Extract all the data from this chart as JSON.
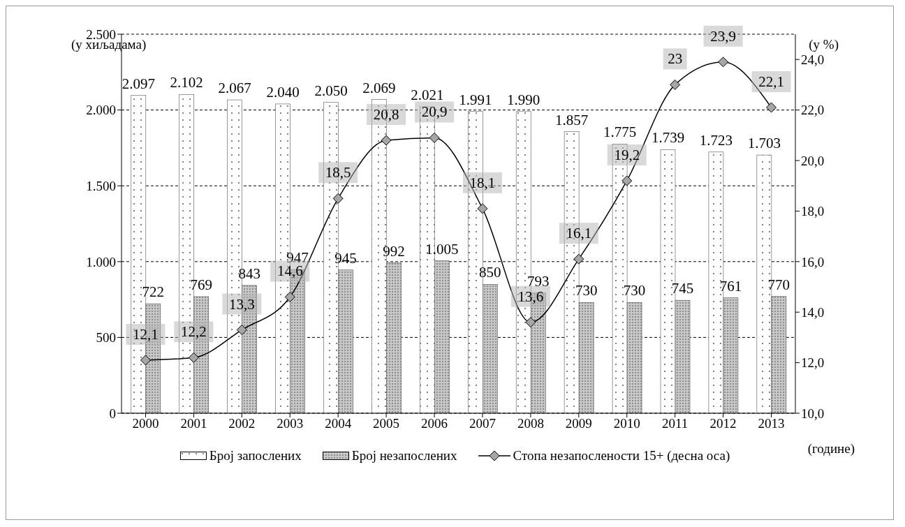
{
  "chart_data": {
    "type": "bar",
    "categories": [
      "2000",
      "2001",
      "2002",
      "2003",
      "2004",
      "2005",
      "2006",
      "2007",
      "2008",
      "2009",
      "2010",
      "2011",
      "2012",
      "2013"
    ],
    "series": [
      {
        "name": "Број запослених",
        "color": "#ffffff",
        "values": [
          2097,
          2102,
          2067,
          2040,
          2050,
          2069,
          2021,
          1991,
          1990,
          1857,
          1775,
          1739,
          1723,
          1703
        ],
        "value_labels": [
          "2.097",
          "2.102",
          "2.067",
          "2.040",
          "2.050",
          "2.069",
          "2.021",
          "1.991",
          "1.990",
          "1.857",
          "1.775",
          "1.739",
          "1.723",
          "1.703"
        ]
      },
      {
        "name": "Број незапослених",
        "color": "#c8c8c8",
        "values": [
          722,
          769,
          843,
          947,
          945,
          992,
          1005,
          850,
          793,
          730,
          730,
          745,
          761,
          770
        ],
        "value_labels": [
          "722",
          "769",
          "843",
          "947",
          "945",
          "992",
          "1.005",
          "850",
          "793",
          "730",
          "730",
          "745",
          "761",
          "770"
        ]
      },
      {
        "name": "Стопа незапослености 15+ (десна оса)",
        "type": "line",
        "axis": "y2",
        "color": "#000000",
        "values": [
          12.1,
          12.2,
          13.3,
          14.6,
          18.5,
          20.8,
          20.9,
          18.1,
          13.6,
          16.1,
          19.2,
          23,
          23.9,
          22.1
        ],
        "value_labels": [
          "12,1",
          "12,2",
          "13,3",
          "14,6",
          "18,5",
          "20,8",
          "20,9",
          "18,1",
          "13,6",
          "16,1",
          "19,2",
          "23",
          "23,9",
          "22,1"
        ]
      }
    ],
    "ylabel": "(у хиљадама)",
    "y2label": "(у %)",
    "xlabel": "(године)",
    "ylim": [
      0,
      2500
    ],
    "yticks": [
      0,
      {
        "value": 500,
        "label": "500"
      },
      {
        "value": 1000,
        "label": "1.000"
      },
      {
        "value": 1500,
        "label": "1.500"
      },
      {
        "value": 2000,
        "label": "2.000"
      },
      {
        "value": 2500,
        "label": "2.500"
      }
    ],
    "y2lim": [
      10,
      25
    ],
    "y2ticks": [
      {
        "value": 10,
        "label": "10,0"
      },
      {
        "value": 12,
        "label": "12,0"
      },
      {
        "value": 14,
        "label": "14,0"
      },
      {
        "value": 16,
        "label": "16,0"
      },
      {
        "value": 18,
        "label": "18,0"
      },
      {
        "value": 20,
        "label": "20,0"
      },
      {
        "value": 22,
        "label": "22,0"
      },
      {
        "value": 24,
        "label": "24,0"
      }
    ],
    "grid": "y",
    "legend": "bottom",
    "marker": "diamond",
    "line_style": "solid"
  }
}
